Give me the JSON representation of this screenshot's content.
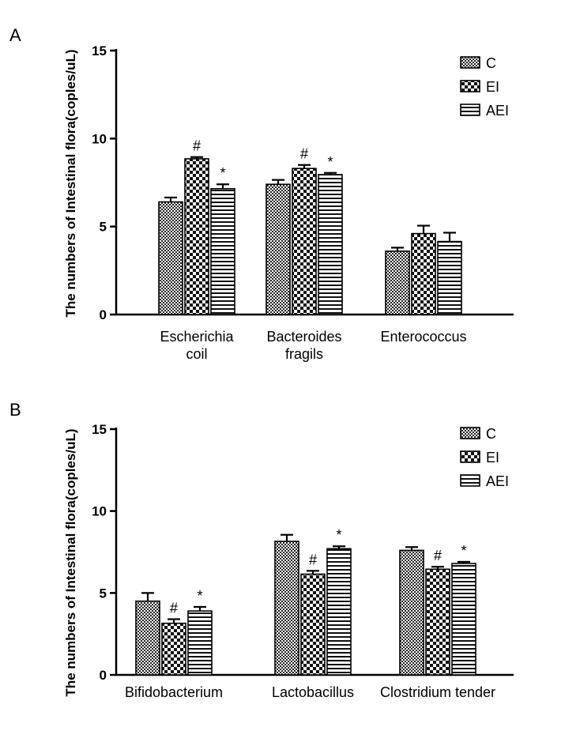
{
  "chart_data": [
    {
      "type": "bar",
      "panel_label": "A",
      "categories": [
        "Escherichia\ncoil",
        "Bacteroides\nfragils",
        "Enterococcus"
      ],
      "series": [
        {
          "name": "C",
          "values": [
            6.4,
            7.4,
            3.6
          ],
          "errors": [
            0.25,
            0.25,
            0.2
          ],
          "marks": [
            "",
            "",
            ""
          ]
        },
        {
          "name": "EI",
          "values": [
            8.85,
            8.3,
            4.6
          ],
          "errors": [
            0.1,
            0.2,
            0.45
          ],
          "marks": [
            "#",
            "#",
            ""
          ]
        },
        {
          "name": "AEI",
          "values": [
            7.15,
            7.95,
            4.15
          ],
          "errors": [
            0.25,
            0.1,
            0.5
          ],
          "marks": [
            "*",
            "*",
            ""
          ]
        }
      ],
      "ylabel": "The numbers of Intestinal flora(coples/uL)",
      "ylim": [
        0,
        15
      ],
      "yticks": [
        "0",
        "5",
        "10",
        "15"
      ],
      "grid": false,
      "legend": "top-right"
    },
    {
      "type": "bar",
      "panel_label": "B",
      "categories": [
        "Bifidobacterium",
        "Lactobacillus",
        "Clostridium tender"
      ],
      "series": [
        {
          "name": "C",
          "values": [
            4.5,
            8.15,
            7.6
          ],
          "errors": [
            0.5,
            0.4,
            0.2
          ],
          "marks": [
            "",
            "",
            ""
          ]
        },
        {
          "name": "EI",
          "values": [
            3.15,
            6.15,
            6.45
          ],
          "errors": [
            0.25,
            0.2,
            0.15
          ],
          "marks": [
            "#",
            "#",
            "#"
          ]
        },
        {
          "name": "AEI",
          "values": [
            3.9,
            7.7,
            6.8
          ],
          "errors": [
            0.25,
            0.15,
            0.1
          ],
          "marks": [
            "*",
            "*",
            "*"
          ]
        }
      ],
      "ylabel": "The numbers of Intestinal flora(coples/uL)",
      "ylim": [
        0,
        15
      ],
      "yticks": [
        "0",
        "5",
        "10",
        "15"
      ],
      "grid": false,
      "legend": "top-right"
    }
  ]
}
